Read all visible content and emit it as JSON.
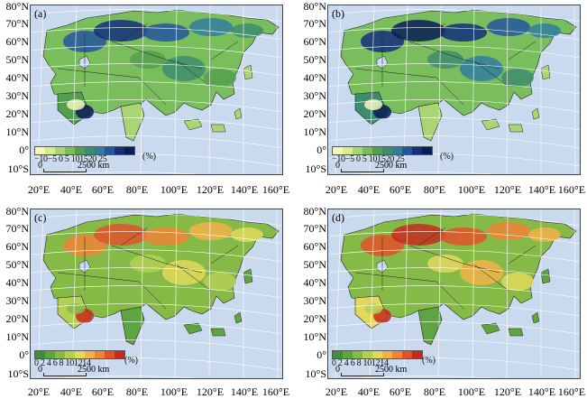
{
  "lat_labels_top": [
    "80°N",
    "70°N",
    "60°N",
    "50°N",
    "40°N",
    "30°N",
    "20°N",
    "10°N",
    "0°",
    "10°S"
  ],
  "lat_labels_bottom": [
    "80°N",
    "70°N",
    "60°N",
    "50°N",
    "40°N",
    "30°N",
    "20°N",
    "10°N",
    "0°",
    "10°S"
  ],
  "lon_labels": [
    "20°E",
    "40°E",
    "60°E",
    "80°E",
    "100°E",
    "120°E",
    "140°E",
    "160°E"
  ],
  "panels": [
    {
      "id": "a",
      "label": "(a)",
      "legend_ticks": "−10−5 0 5 101520 25",
      "unit": "(%)",
      "scale_zero": "0",
      "scale_km": "2500 km"
    },
    {
      "id": "b",
      "label": "(b)",
      "legend_ticks": "−10−5 0 5 101520 25",
      "unit": "(%)",
      "scale_zero": "0",
      "scale_km": "2500 km"
    },
    {
      "id": "c",
      "label": "(c)",
      "legend_ticks": "0 2 4 6 8 101214",
      "unit": "(%)",
      "scale_zero": "0",
      "scale_km": "2500 km"
    },
    {
      "id": "d",
      "label": "(d)",
      "legend_ticks": "0 2 4 6 8 101214",
      "unit": "(%)",
      "scale_zero": "0",
      "scale_km": "2500 km"
    }
  ],
  "colors": {
    "ocean": "#c9d9ee",
    "grid": "#ffffff",
    "diverging_ramp": [
      "#f4f7b8",
      "#d7ec8c",
      "#a9d672",
      "#79bd5d",
      "#52a04f",
      "#3d8c6e",
      "#327c9c",
      "#26559e",
      "#132f7a",
      "#081c55"
    ],
    "sequential_ramp": [
      "#3f8f3a",
      "#5ea43f",
      "#86ba46",
      "#b3cf55",
      "#e2d85c",
      "#f3b24a",
      "#ee8438",
      "#e0522a",
      "#c62a1f"
    ]
  }
}
